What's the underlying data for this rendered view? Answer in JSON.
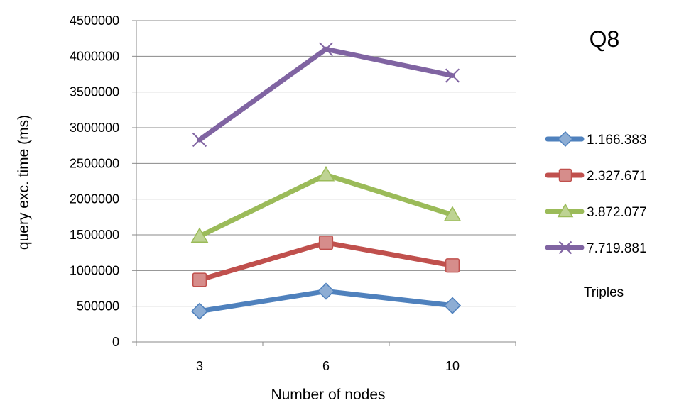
{
  "chart_data": {
    "type": "line",
    "title": "Q8",
    "xlabel": "Number of nodes",
    "ylabel": "query exc. time (ms)",
    "categories": [
      "3",
      "6",
      "10"
    ],
    "ylim": [
      0,
      4500000
    ],
    "yticks": [
      0,
      500000,
      1000000,
      1500000,
      2000000,
      2500000,
      3000000,
      3500000,
      4000000,
      4500000
    ],
    "ytick_labels": [
      "0",
      "500000",
      "1000000",
      "1500000",
      "2000000",
      "2500000",
      "3000000",
      "3500000",
      "4000000",
      "4500000"
    ],
    "grid": true,
    "legend_position": "right",
    "legend_title": "Triples",
    "series": [
      {
        "name": "1.166.383",
        "values": [
          430000,
          710000,
          510000
        ],
        "color": "#4f81bd",
        "marker": "diamond"
      },
      {
        "name": "2.327.671",
        "values": [
          870000,
          1390000,
          1070000
        ],
        "color": "#c0504d",
        "marker": "square"
      },
      {
        "name": "3.872.077",
        "values": [
          1480000,
          2340000,
          1780000
        ],
        "color": "#9bbb59",
        "marker": "triangle"
      },
      {
        "name": "7.719.881",
        "values": [
          2830000,
          4100000,
          3730000
        ],
        "color": "#8064a2",
        "marker": "x"
      }
    ]
  }
}
